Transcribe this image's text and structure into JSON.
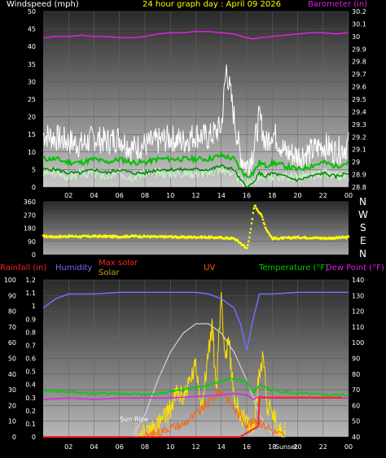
{
  "header": {
    "left": "Windspeed (mph)",
    "center": "24 hour graph day : April 09 2026",
    "right": "Barometer (in)"
  },
  "colors": {
    "wind_axis": "#ffffff",
    "baro": "#e020e0",
    "direction": "#ffff00",
    "rain": "#ff2020",
    "humidity": "#7070ff",
    "solar": "#ffe000",
    "max_solar": "#d0d0d0",
    "uv": "#ff6000",
    "temp": "#00d000",
    "dew": "#e020e0"
  },
  "legend": {
    "rainfall": "Rainfall (in)",
    "humidity": "Humidity",
    "max_solar": "Max solar",
    "solar": "Solar",
    "uv": "UV",
    "temperature": "Temperature (°F)",
    "dew_point": "Dew Point (°F)"
  },
  "annotations": {
    "sunrise": "Sun Rise",
    "sunset": "Sunset"
  },
  "compass": [
    "N",
    "W",
    "S",
    "E",
    "N"
  ],
  "chart_data": [
    {
      "type": "line",
      "name": "wind_barometer",
      "x_ticks": [
        "02",
        "04",
        "06",
        "08",
        "10",
        "12",
        "14",
        "16",
        "18",
        "20",
        "22",
        "00"
      ],
      "y_left_ticks": [
        "50",
        "45",
        "40",
        "35",
        "30",
        "25",
        "20",
        "15",
        "10",
        "5",
        "0"
      ],
      "y_right_ticks": [
        "30.2",
        "30.1",
        "30",
        "29.9",
        "29.8",
        "29.7",
        "29.6",
        "29.5",
        "29.4",
        "29.3",
        "29.2",
        "29.1",
        "29",
        "28.9",
        "28.8"
      ],
      "ylim_left": [
        0,
        50
      ],
      "ylim_right": [
        28.8,
        30.2
      ],
      "series": [
        {
          "name": "gust",
          "axis": "left",
          "x": [
            0,
            1,
            2,
            3,
            4,
            5,
            6,
            7,
            8,
            9,
            10,
            11,
            12,
            13,
            14,
            14.4,
            15,
            15.5,
            16,
            16.5,
            17,
            17.5,
            18,
            19,
            20,
            21,
            22,
            23,
            24
          ],
          "y": [
            15,
            14,
            13,
            12,
            14,
            13,
            14,
            11,
            12,
            13,
            14,
            13,
            15,
            14,
            17,
            34,
            20,
            9,
            6,
            10,
            20,
            12,
            16,
            10,
            9,
            10,
            12,
            10,
            12
          ]
        },
        {
          "name": "wind",
          "axis": "left",
          "x": [
            0,
            1,
            2,
            3,
            4,
            5,
            6,
            7,
            8,
            9,
            10,
            11,
            12,
            13,
            14,
            15,
            15.5,
            16,
            16.5,
            17,
            17.5,
            18,
            19,
            20,
            21,
            22,
            23,
            24
          ],
          "y": [
            8,
            8,
            7,
            7,
            8,
            7,
            8,
            7,
            7,
            8,
            8,
            8,
            8,
            8,
            9,
            8,
            5,
            3,
            4,
            7,
            6,
            7,
            6,
            5,
            6,
            7,
            6,
            7
          ]
        },
        {
          "name": "average",
          "axis": "left",
          "x": [
            0,
            1,
            2,
            3,
            4,
            5,
            6,
            7,
            8,
            9,
            10,
            11,
            12,
            13,
            14,
            15,
            15.5,
            16,
            16.5,
            17,
            17.5,
            18,
            19,
            20,
            21,
            22,
            23,
            24
          ],
          "y": [
            4,
            4,
            3,
            4,
            4,
            3,
            4,
            3,
            4,
            4,
            4,
            4,
            4,
            4,
            5,
            4,
            2,
            1,
            2,
            3,
            3,
            3,
            3,
            3,
            3,
            4,
            3,
            3
          ]
        },
        {
          "name": "barometer",
          "axis": "right",
          "x": [
            0,
            1,
            2,
            3,
            4,
            5,
            6,
            7,
            8,
            9,
            10,
            11,
            12,
            13,
            14,
            15,
            16,
            16.5,
            17,
            18,
            19,
            20,
            21,
            22,
            23,
            24
          ],
          "y": [
            29.99,
            30.0,
            30.0,
            30.01,
            30.0,
            30.0,
            29.99,
            29.99,
            30.0,
            30.02,
            30.03,
            30.03,
            30.04,
            30.04,
            30.03,
            30.02,
            29.99,
            29.98,
            29.99,
            30.0,
            30.01,
            30.02,
            30.03,
            30.03,
            30.02,
            30.03
          ]
        }
      ]
    },
    {
      "type": "scatter",
      "name": "wind_direction",
      "y_ticks": [
        "360",
        "270",
        "180",
        "90",
        "0"
      ],
      "ylim": [
        0,
        360
      ],
      "x": [
        0,
        1,
        2,
        3,
        4,
        5,
        6,
        7,
        8,
        9,
        10,
        11,
        12,
        13,
        14,
        15,
        15.5,
        16,
        16.3,
        16.6,
        16.9,
        17.2,
        17.5,
        18,
        19,
        20,
        21,
        22,
        23,
        24
      ],
      "y": [
        125,
        122,
        125,
        123,
        125,
        124,
        122,
        126,
        124,
        120,
        122,
        118,
        120,
        118,
        115,
        110,
        80,
        40,
        160,
        340,
        300,
        260,
        180,
        110,
        112,
        118,
        116,
        112,
        114,
        118
      ]
    },
    {
      "type": "line",
      "name": "temp_humidity_solar",
      "y_left_ticks": [
        "100",
        "90",
        "80",
        "70",
        "60",
        "50",
        "40",
        "30",
        "20",
        "10",
        "0"
      ],
      "y_rain_ticks": [
        "1.2",
        "1.1",
        "1",
        "0.9",
        "0.8",
        "0.7",
        "0.6",
        "0.5",
        "0.4",
        "0.3",
        "0.2",
        "0.1",
        "0"
      ],
      "y_right_ticks": [
        "140",
        "130",
        "120",
        "110",
        "100",
        "90",
        "80",
        "70",
        "60",
        "50",
        "40"
      ],
      "ylim_left": [
        0,
        100
      ],
      "ylim_right": [
        35,
        140
      ],
      "ylim_rain": [
        0,
        1.2
      ],
      "series": [
        {
          "name": "humidity",
          "axis": "left",
          "x": [
            0,
            1,
            2,
            4,
            6,
            8,
            10,
            12,
            13,
            14,
            15,
            15.5,
            16,
            16.5,
            17,
            18,
            20,
            22,
            24
          ],
          "y": [
            82,
            88,
            91,
            91,
            92,
            92,
            92,
            92,
            91,
            88,
            82,
            72,
            55,
            75,
            91,
            91,
            92,
            92,
            92
          ]
        },
        {
          "name": "temperature",
          "axis": "right",
          "x": [
            0,
            2,
            4,
            6,
            8,
            10,
            12,
            13,
            14,
            15,
            16,
            16.5,
            17,
            18,
            20,
            22,
            24
          ],
          "y": [
            66,
            65,
            64,
            64,
            63,
            65,
            68,
            70,
            72,
            74,
            72,
            64,
            70,
            66,
            64,
            63,
            63
          ]
        },
        {
          "name": "dew_point",
          "axis": "right",
          "x": [
            0,
            2,
            4,
            6,
            8,
            10,
            12,
            14,
            15,
            16,
            16.5,
            17,
            18,
            20,
            22,
            24
          ],
          "y": [
            60,
            61,
            60,
            61,
            61,
            61,
            62,
            63,
            64,
            63,
            60,
            62,
            61,
            61,
            61,
            61
          ]
        },
        {
          "name": "max_solar",
          "axis": "left",
          "x": [
            7,
            8,
            9,
            10,
            11,
            12,
            13,
            14,
            15,
            16,
            17,
            18,
            19
          ],
          "y": [
            0,
            14,
            36,
            54,
            66,
            72,
            72,
            66,
            54,
            36,
            14,
            2,
            0
          ]
        },
        {
          "name": "solar",
          "axis": "left",
          "x": [
            7.5,
            8,
            8.5,
            9,
            9.5,
            10,
            10.5,
            11,
            11.5,
            12,
            12.5,
            13,
            13.3,
            13.6,
            14,
            14.3,
            14.6,
            15,
            15.5,
            16,
            16.5,
            17,
            17.3,
            17.6,
            18,
            18.5,
            19
          ],
          "y": [
            0,
            2,
            5,
            8,
            12,
            18,
            28,
            25,
            35,
            45,
            20,
            55,
            70,
            30,
            92,
            50,
            60,
            25,
            15,
            8,
            5,
            40,
            55,
            20,
            15,
            5,
            0
          ]
        },
        {
          "name": "uv",
          "axis": "left",
          "x": [
            8,
            9,
            10,
            11,
            12,
            13,
            14,
            15,
            16,
            17,
            18,
            19
          ],
          "y": [
            0,
            3,
            6,
            8,
            14,
            22,
            30,
            18,
            8,
            10,
            4,
            0
          ]
        },
        {
          "name": "rain",
          "axis": "rain",
          "x": [
            0,
            15.5,
            16,
            16.9,
            17,
            23.5
          ],
          "y": [
            0,
            0,
            0.03,
            0.08,
            0.3,
            0.3
          ]
        }
      ]
    }
  ]
}
